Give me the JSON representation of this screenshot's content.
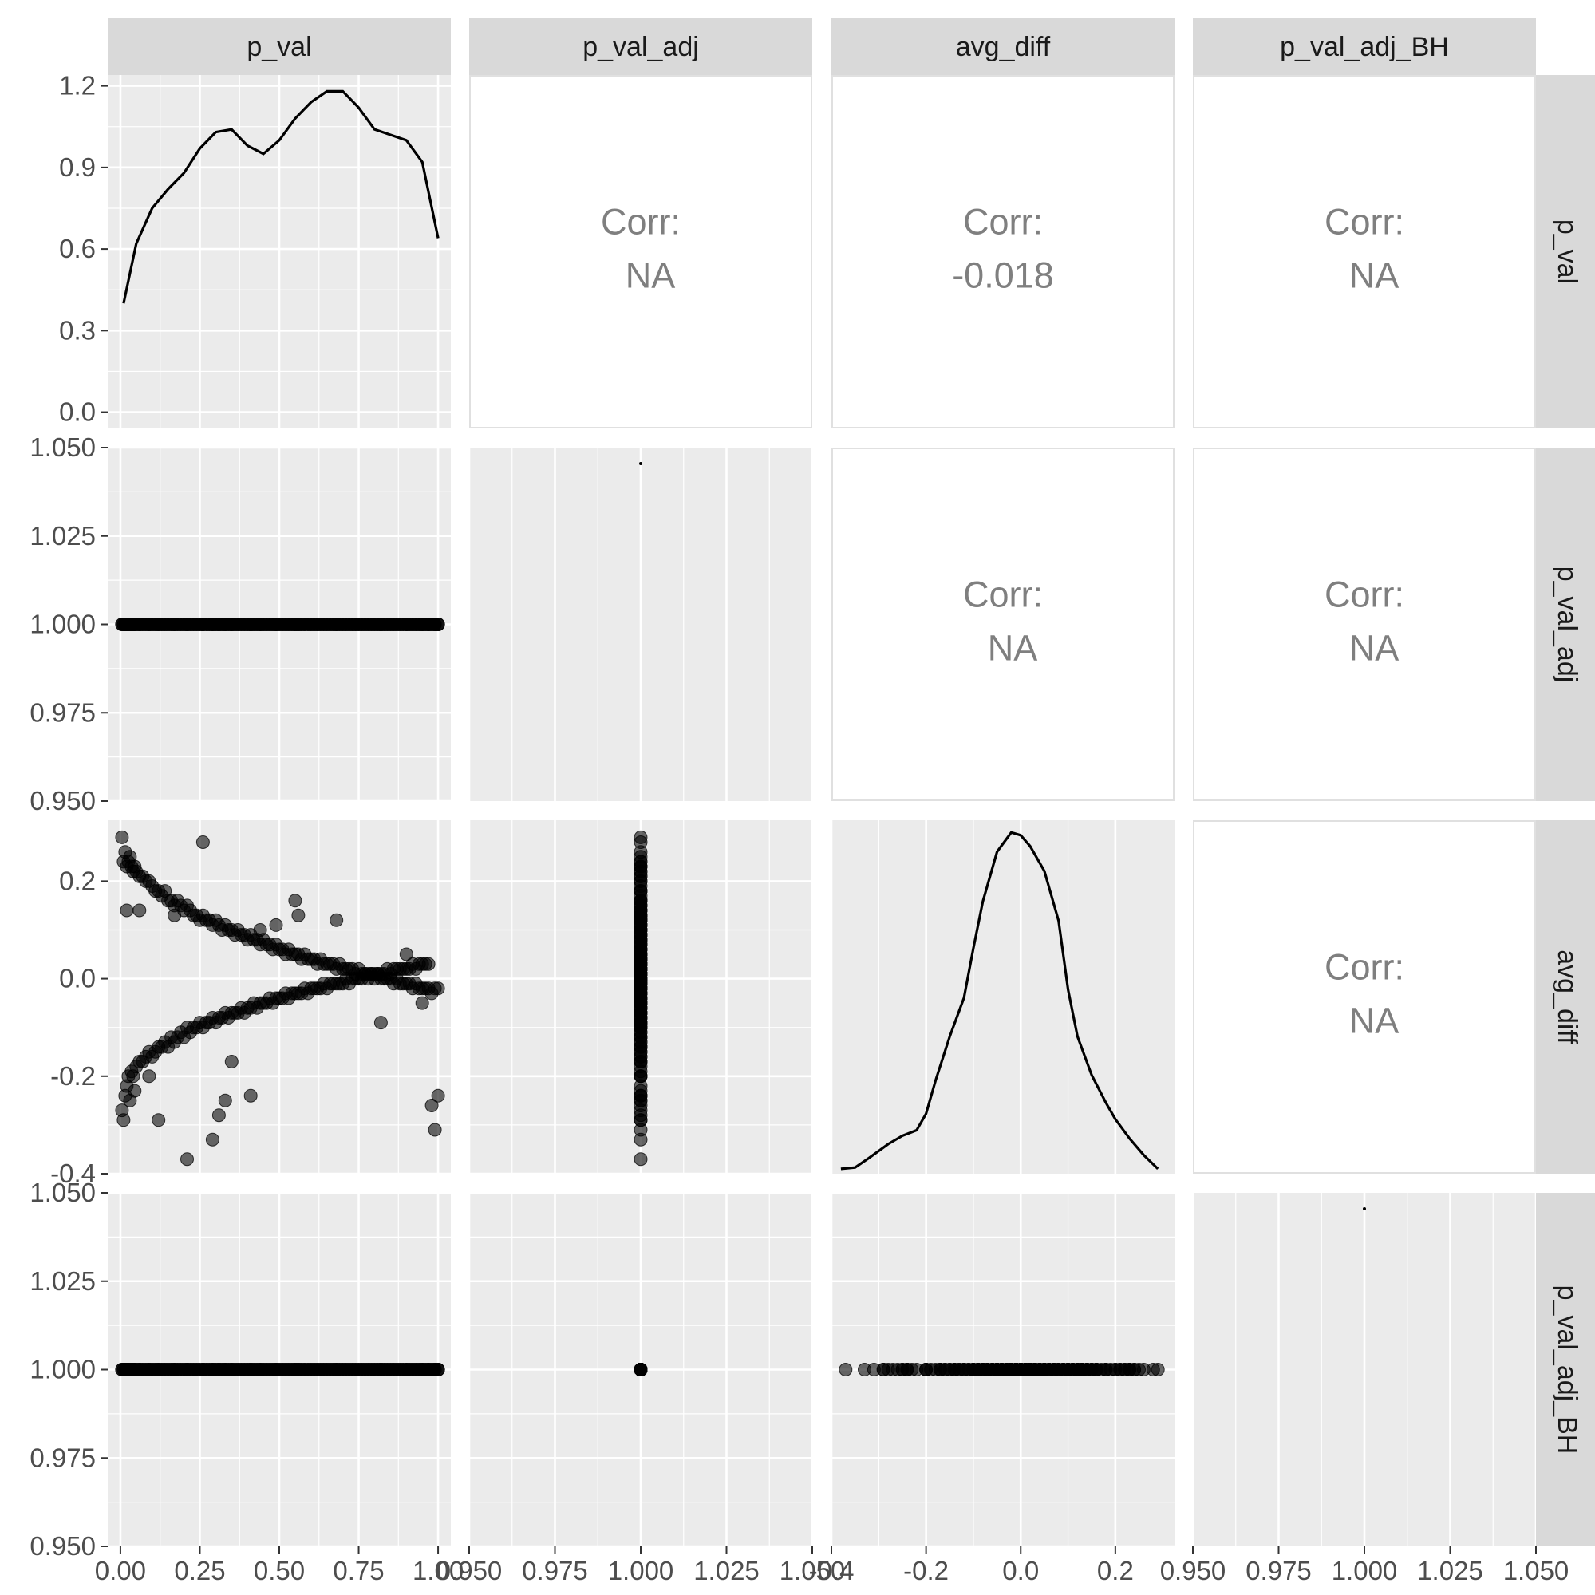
{
  "chart_data": {
    "type": "scatter",
    "title": "",
    "variables": [
      "p_val",
      "p_val_adj",
      "avg_diff",
      "p_val_adj_BH"
    ],
    "axes": {
      "x": [
        {
          "lim": [
            -0.04,
            1.04
          ],
          "ticks": [
            0.0,
            0.25,
            0.5,
            0.75,
            1.0
          ],
          "tick_labels": [
            "0.00",
            "0.25",
            "0.50",
            "0.75",
            "1.00"
          ]
        },
        {
          "lim": [
            0.95,
            1.05
          ],
          "ticks": [
            0.95,
            0.975,
            1.0,
            1.025,
            1.05
          ],
          "tick_labels": [
            "0.950",
            "0.975",
            "1.000",
            "1.025",
            "1.050"
          ]
        },
        {
          "lim": [
            -0.4,
            0.325
          ],
          "ticks": [
            -0.4,
            -0.2,
            0.0,
            0.2
          ],
          "tick_labels": [
            "-0.4",
            "-0.2",
            "0.0",
            "0.2"
          ]
        },
        {
          "lim": [
            0.95,
            1.05
          ],
          "ticks": [
            0.95,
            0.975,
            1.0,
            1.025,
            1.05
          ],
          "tick_labels": [
            "0.950",
            "0.975",
            "1.000",
            "1.025",
            "1.050"
          ]
        }
      ],
      "y": [
        {
          "lim": [
            -0.06,
            1.24
          ],
          "ticks": [
            0.0,
            0.3,
            0.6,
            0.9,
            1.2
          ],
          "tick_labels": [
            "0.0",
            "0.3",
            "0.6",
            "0.9",
            "1.2"
          ]
        },
        {
          "lim": [
            0.95,
            1.05
          ],
          "ticks": [
            0.95,
            0.975,
            1.0,
            1.025,
            1.05
          ],
          "tick_labels": [
            "0.950",
            "0.975",
            "1.000",
            "1.025",
            "1.050"
          ]
        },
        {
          "lim": [
            -0.4,
            0.325
          ],
          "ticks": [
            -0.4,
            -0.2,
            0.0,
            0.2
          ],
          "tick_labels": [
            "-0.4",
            "-0.2",
            "0.0",
            "0.2"
          ]
        },
        {
          "lim": [
            0.95,
            1.05
          ],
          "ticks": [
            0.95,
            0.975,
            1.0,
            1.025,
            1.05
          ],
          "tick_labels": [
            "0.950",
            "0.975",
            "1.000",
            "1.025",
            "1.050"
          ]
        }
      ]
    },
    "correlations": [
      {
        "row": 0,
        "col": 1,
        "label": "Corr:",
        "value": "NA"
      },
      {
        "row": 0,
        "col": 2,
        "label": "Corr:",
        "value": "-0.018"
      },
      {
        "row": 0,
        "col": 3,
        "label": "Corr:",
        "value": "NA"
      },
      {
        "row": 1,
        "col": 2,
        "label": "Corr:",
        "value": "NA"
      },
      {
        "row": 1,
        "col": 3,
        "label": "Corr:",
        "value": "NA"
      },
      {
        "row": 2,
        "col": 3,
        "label": "Corr:",
        "value": "NA"
      }
    ],
    "density_p_val": {
      "x": [
        0.01,
        0.05,
        0.1,
        0.15,
        0.2,
        0.25,
        0.3,
        0.35,
        0.4,
        0.45,
        0.5,
        0.55,
        0.6,
        0.65,
        0.7,
        0.75,
        0.8,
        0.85,
        0.9,
        0.95,
        1.0
      ],
      "y": [
        0.4,
        0.62,
        0.75,
        0.82,
        0.88,
        0.97,
        1.03,
        1.04,
        0.98,
        0.95,
        1.0,
        1.08,
        1.14,
        1.18,
        1.18,
        1.12,
        1.04,
        1.02,
        1.0,
        0.92,
        0.64
      ]
    },
    "density_avg_diff": {
      "x": [
        -0.38,
        -0.35,
        -0.32,
        -0.28,
        -0.25,
        -0.22,
        -0.2,
        -0.18,
        -0.15,
        -0.12,
        -0.1,
        -0.08,
        -0.05,
        -0.02,
        0.0,
        0.02,
        0.05,
        0.08,
        0.1,
        0.12,
        0.15,
        0.18,
        0.2,
        0.23,
        0.26,
        0.29
      ],
      "y": [
        0.0,
        0.005,
        0.04,
        0.09,
        0.12,
        0.14,
        0.2,
        0.32,
        0.48,
        0.62,
        0.8,
        0.97,
        1.15,
        1.22,
        1.21,
        1.17,
        1.08,
        0.9,
        0.65,
        0.48,
        0.34,
        0.24,
        0.18,
        0.11,
        0.05,
        0.0
      ]
    },
    "p_val_adj_values": 1.0,
    "p_val_adj_BH_values": 1.0,
    "p_val": [
      0.005,
      0.01,
      0.015,
      0.02,
      0.025,
      0.03,
      0.035,
      0.04,
      0.045,
      0.05,
      0.06,
      0.07,
      0.08,
      0.09,
      0.1,
      0.11,
      0.12,
      0.13,
      0.14,
      0.15,
      0.16,
      0.17,
      0.18,
      0.19,
      0.2,
      0.21,
      0.22,
      0.23,
      0.24,
      0.25,
      0.26,
      0.27,
      0.28,
      0.29,
      0.3,
      0.31,
      0.32,
      0.33,
      0.34,
      0.35,
      0.36,
      0.37,
      0.38,
      0.39,
      0.4,
      0.41,
      0.42,
      0.43,
      0.44,
      0.45,
      0.46,
      0.47,
      0.48,
      0.49,
      0.5,
      0.51,
      0.52,
      0.53,
      0.54,
      0.55,
      0.56,
      0.57,
      0.58,
      0.59,
      0.6,
      0.61,
      0.62,
      0.63,
      0.64,
      0.65,
      0.66,
      0.67,
      0.68,
      0.69,
      0.7,
      0.71,
      0.72,
      0.73,
      0.74,
      0.75,
      0.76,
      0.77,
      0.78,
      0.79,
      0.8,
      0.81,
      0.82,
      0.83,
      0.84,
      0.85,
      0.86,
      0.87,
      0.88,
      0.89,
      0.9,
      0.91,
      0.92,
      0.93,
      0.94,
      0.95,
      0.96,
      0.97,
      0.98,
      0.99,
      1.0,
      0.005,
      0.01,
      0.015,
      0.02,
      0.025,
      0.03,
      0.035,
      0.04,
      0.045,
      0.05,
      0.06,
      0.07,
      0.08,
      0.09,
      0.1,
      0.11,
      0.12,
      0.13,
      0.14,
      0.15,
      0.16,
      0.17,
      0.18,
      0.19,
      0.2,
      0.21,
      0.22,
      0.23,
      0.24,
      0.25,
      0.26,
      0.27,
      0.28,
      0.29,
      0.3,
      0.31,
      0.32,
      0.33,
      0.34,
      0.35,
      0.36,
      0.37,
      0.38,
      0.39,
      0.4,
      0.41,
      0.42,
      0.43,
      0.44,
      0.45,
      0.46,
      0.47,
      0.48,
      0.49,
      0.5,
      0.51,
      0.52,
      0.53,
      0.54,
      0.55,
      0.56,
      0.57,
      0.58,
      0.59,
      0.6,
      0.61,
      0.62,
      0.63,
      0.64,
      0.65,
      0.66,
      0.67,
      0.68,
      0.69,
      0.7,
      0.71,
      0.72,
      0.73,
      0.74,
      0.75,
      0.76,
      0.77,
      0.78,
      0.79,
      0.8,
      0.81,
      0.82,
      0.83,
      0.84,
      0.85,
      0.86,
      0.87,
      0.88,
      0.89,
      0.9,
      0.91,
      0.92,
      0.93,
      0.94,
      0.95,
      0.96,
      0.97,
      0.98,
      0.99,
      1.0,
      0.02,
      0.06,
      0.09,
      0.12,
      0.17,
      0.21,
      0.26,
      0.29,
      0.31,
      0.33,
      0.35,
      0.41,
      0.44,
      0.49,
      0.55,
      0.56,
      0.68,
      0.82,
      0.9,
      0.95,
      0.97,
      0.99,
      1.0
    ],
    "avg_diff": [
      0.29,
      0.24,
      0.26,
      0.23,
      0.24,
      0.25,
      0.23,
      0.22,
      0.23,
      0.22,
      0.21,
      0.21,
      0.2,
      0.2,
      0.19,
      0.18,
      0.18,
      0.17,
      0.18,
      0.16,
      0.16,
      0.15,
      0.16,
      0.15,
      0.14,
      0.15,
      0.14,
      0.13,
      0.13,
      0.12,
      0.13,
      0.12,
      0.12,
      0.11,
      0.12,
      0.11,
      0.1,
      0.11,
      0.1,
      0.1,
      0.09,
      0.1,
      0.09,
      0.09,
      0.08,
      0.09,
      0.08,
      0.08,
      0.07,
      0.08,
      0.07,
      0.07,
      0.06,
      0.07,
      0.06,
      0.06,
      0.05,
      0.06,
      0.05,
      0.05,
      0.05,
      0.04,
      0.05,
      0.04,
      0.04,
      0.04,
      0.03,
      0.04,
      0.03,
      0.03,
      0.03,
      0.03,
      0.02,
      0.03,
      0.02,
      0.02,
      0.02,
      0.02,
      0.01,
      0.02,
      0.01,
      0.01,
      0.01,
      0.01,
      0.0,
      0.01,
      0.0,
      0.0,
      0.0,
      0.0,
      -0.01,
      0.0,
      -0.01,
      -0.01,
      -0.01,
      -0.01,
      -0.02,
      -0.01,
      -0.02,
      -0.02,
      -0.02,
      -0.02,
      -0.03,
      -0.02,
      -0.02,
      -0.27,
      -0.29,
      -0.24,
      -0.22,
      -0.2,
      -0.25,
      -0.19,
      -0.2,
      -0.23,
      -0.18,
      -0.17,
      -0.17,
      -0.16,
      -0.15,
      -0.16,
      -0.15,
      -0.14,
      -0.14,
      -0.13,
      -0.14,
      -0.12,
      -0.13,
      -0.12,
      -0.11,
      -0.12,
      -0.1,
      -0.11,
      -0.1,
      -0.1,
      -0.09,
      -0.1,
      -0.09,
      -0.09,
      -0.08,
      -0.09,
      -0.08,
      -0.08,
      -0.07,
      -0.08,
      -0.07,
      -0.07,
      -0.07,
      -0.06,
      -0.07,
      -0.06,
      -0.06,
      -0.05,
      -0.06,
      -0.05,
      -0.05,
      -0.05,
      -0.04,
      -0.05,
      -0.04,
      -0.04,
      -0.04,
      -0.03,
      -0.04,
      -0.03,
      -0.03,
      -0.03,
      -0.03,
      -0.02,
      -0.03,
      -0.02,
      -0.02,
      -0.02,
      -0.02,
      -0.01,
      -0.02,
      -0.01,
      -0.01,
      -0.01,
      -0.01,
      -0.01,
      0.0,
      -0.01,
      0.0,
      0.0,
      0.0,
      0.0,
      0.01,
      0.0,
      0.01,
      0.01,
      0.01,
      0.01,
      0.01,
      0.02,
      0.01,
      0.02,
      0.02,
      0.02,
      0.02,
      0.02,
      0.02,
      0.03,
      0.02,
      0.03,
      0.03,
      0.03,
      0.03,
      -0.26,
      -0.31,
      -0.24,
      0.14,
      0.14,
      -0.2,
      -0.29,
      0.13,
      -0.37,
      0.28,
      -0.33,
      -0.28,
      -0.25,
      -0.17,
      -0.24,
      0.1,
      0.11,
      0.16,
      0.13,
      0.12,
      -0.09,
      0.05,
      -0.05
    ]
  }
}
